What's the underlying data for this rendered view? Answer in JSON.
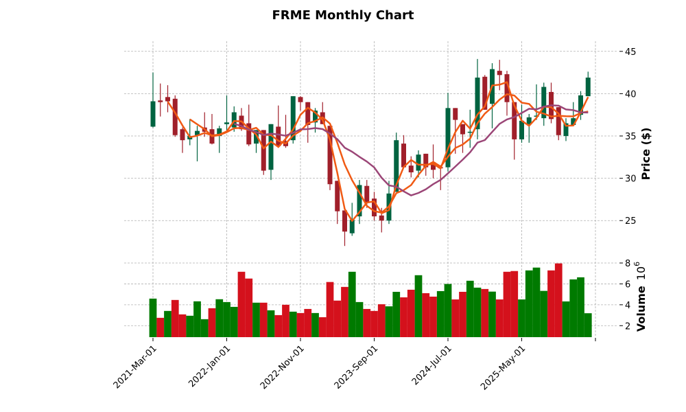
{
  "chart_data": {
    "type": "candlestick",
    "title": "FRME Monthly Chart",
    "ylabel": "Price ($)",
    "volume_label": "Volume",
    "volume_exponent_base": "10",
    "volume_exponent": "6",
    "x": [
      "2021-03",
      "2021-04",
      "2021-05",
      "2021-06",
      "2021-07",
      "2021-08",
      "2021-09",
      "2021-10",
      "2021-11",
      "2021-12",
      "2022-01",
      "2022-02",
      "2022-03",
      "2022-04",
      "2022-05",
      "2022-06",
      "2022-07",
      "2022-08",
      "2022-09",
      "2022-10",
      "2022-11",
      "2022-12",
      "2023-01",
      "2023-02",
      "2023-03",
      "2023-04",
      "2023-05",
      "2023-06",
      "2023-07",
      "2023-08",
      "2023-09",
      "2023-10",
      "2023-11",
      "2023-12",
      "2024-01",
      "2024-02",
      "2024-03",
      "2024-04",
      "2024-05",
      "2024-06",
      "2024-07",
      "2024-08",
      "2024-09",
      "2024-10",
      "2024-11",
      "2024-12",
      "2025-01",
      "2025-02",
      "2025-03",
      "2025-04",
      "2025-05",
      "2025-06",
      "2025-07",
      "2025-08",
      "2025-09",
      "2025-10",
      "2025-11",
      "2025-12",
      "2026-01",
      "2026-02"
    ],
    "open": [
      36.1,
      39.2,
      39.6,
      39.4,
      35.8,
      34.6,
      35.1,
      36.0,
      35.8,
      35.0,
      36.4,
      36.0,
      37.4,
      36.5,
      34.1,
      35.7,
      31.0,
      36.1,
      34.4,
      34.5,
      39.6,
      39.0,
      36.6,
      37.8,
      36.2,
      29.7,
      26.2,
      23.5,
      25.5,
      29.1,
      27.6,
      25.6,
      25.0,
      28.4,
      34.1,
      31.5,
      30.9,
      32.9,
      31.9,
      31.3,
      31.3,
      38.3,
      36.4,
      35.4,
      35.8,
      42.0,
      38.8,
      42.7,
      42.3,
      39.0,
      34.6,
      36.4,
      37.4,
      37.1,
      40.2,
      38.4,
      35.0,
      36.3,
      37.5,
      39.7
    ],
    "high": [
      42.5,
      41.2,
      41.0,
      39.8,
      36.0,
      37.0,
      36.2,
      37.8,
      37.6,
      36.2,
      39.8,
      38.5,
      38.3,
      38.7,
      35.7,
      35.7,
      36.4,
      38.6,
      37.5,
      39.7,
      39.7,
      39.0,
      38.3,
      39.0,
      36.2,
      29.7,
      26.2,
      27.1,
      29.8,
      29.8,
      28.4,
      26.5,
      29.7,
      35.4,
      35.1,
      32.6,
      33.3,
      32.9,
      34.0,
      31.3,
      40.1,
      38.3,
      36.4,
      38.1,
      44.1,
      42.2,
      43.6,
      44.0,
      42.7,
      39.0,
      38.7,
      37.6,
      41.1,
      41.3,
      41.3,
      38.4,
      37.1,
      39.0,
      40.3,
      42.6
    ],
    "low": [
      36.0,
      37.3,
      37.8,
      34.9,
      33.0,
      33.9,
      32.0,
      34.9,
      34.0,
      33.0,
      35.5,
      35.5,
      35.6,
      33.8,
      33.0,
      30.4,
      29.8,
      33.6,
      33.6,
      34.1,
      38.0,
      34.2,
      35.4,
      36.4,
      28.6,
      24.6,
      22.0,
      23.2,
      24.6,
      26.5,
      25.0,
      23.6,
      24.6,
      28.4,
      31.3,
      30.1,
      30.1,
      30.3,
      30.0,
      28.6,
      30.8,
      32.9,
      33.0,
      33.6,
      34.6,
      38.1,
      35.9,
      40.4,
      37.4,
      32.2,
      34.2,
      34.2,
      36.9,
      36.2,
      36.5,
      34.5,
      34.4,
      36.3,
      36.9,
      39.7
    ],
    "close": [
      39.1,
      39.0,
      39.1,
      35.1,
      34.5,
      35.0,
      35.6,
      35.5,
      34.1,
      35.9,
      36.6,
      37.8,
      35.8,
      34.0,
      35.7,
      30.9,
      36.4,
      33.8,
      33.8,
      39.7,
      39.0,
      36.3,
      38.0,
      36.4,
      29.3,
      26.1,
      23.7,
      25.1,
      29.2,
      27.1,
      25.5,
      25.0,
      28.2,
      34.5,
      31.3,
      30.7,
      32.8,
      31.3,
      31.0,
      31.2,
      38.3,
      36.9,
      35.2,
      35.5,
      41.9,
      38.1,
      42.9,
      42.2,
      39.0,
      34.6,
      36.8,
      37.2,
      37.4,
      40.8,
      37.0,
      35.1,
      36.5,
      37.1,
      39.8,
      41.9
    ],
    "volume": [
      4.59,
      2.75,
      3.41,
      4.46,
      3.08,
      2.95,
      4.33,
      2.62,
      3.67,
      4.53,
      4.26,
      3.8,
      7.16,
      6.51,
      4.2,
      4.2,
      3.47,
      3.01,
      4.0,
      3.34,
      3.21,
      3.6,
      3.21,
      2.81,
      6.18,
      4.4,
      5.71,
      7.16,
      4.26,
      3.6,
      3.41,
      4.05,
      3.85,
      5.24,
      4.71,
      5.44,
      6.83,
      5.11,
      4.78,
      5.31,
      5.99,
      4.51,
      5.24,
      6.3,
      5.64,
      5.51,
      5.26,
      4.51,
      7.16,
      7.23,
      4.51,
      7.29,
      7.56,
      5.33,
      7.29,
      7.96,
      4.32,
      6.43,
      6.63,
      3.19
    ],
    "volume_up": [
      1,
      0,
      1,
      0,
      0,
      1,
      1,
      1,
      0,
      1,
      1,
      1,
      0,
      0,
      1,
      0,
      1,
      0,
      0,
      1,
      0,
      0,
      1,
      0,
      0,
      0,
      0,
      1,
      1,
      0,
      0,
      0,
      1,
      1,
      0,
      0,
      1,
      0,
      0,
      1,
      1,
      0,
      0,
      1,
      1,
      0,
      1,
      0,
      0,
      0,
      1,
      1,
      1,
      1,
      0,
      0,
      1,
      1,
      1,
      1
    ],
    "mav": [
      3,
      6,
      12
    ],
    "ylim": [
      20.8,
      46.2
    ],
    "yticks": [
      25,
      30,
      35,
      40,
      45
    ],
    "volume_ylim": [
      0.9,
      8.46
    ],
    "volume_yticks": [
      2,
      4,
      6,
      8
    ],
    "xtick_index": [
      0,
      10,
      20,
      30,
      40,
      50,
      60
    ],
    "xtick_labels": [
      "2021-Mar-01",
      "2022-Jan-01",
      "2022-Nov-01",
      "2023-Sep-01",
      "2024-Jul-01",
      "2025-May-01",
      ""
    ],
    "grid": true,
    "colors": {
      "candle_up": "#006340",
      "candle_down": "#a01f2a",
      "volume_up": "#007a00",
      "volume_down": "#d4111c",
      "mav": [
        "#f05a14",
        "#f05a14",
        "#9b4677"
      ]
    }
  }
}
